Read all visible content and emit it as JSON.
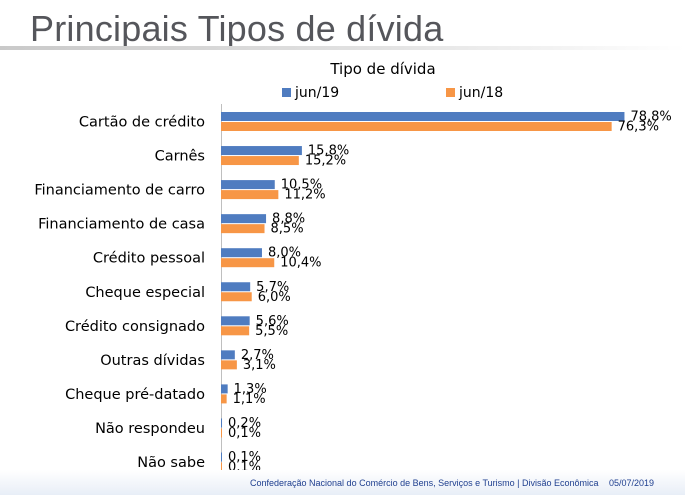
{
  "slide": {
    "title": "Principais Tipos de dívida",
    "footer_org": "Confederação Nacional do Comércio de Bens, Serviços e Turismo | Divisão Econômica",
    "footer_date": "05/07/2019"
  },
  "chart_data": {
    "type": "bar",
    "orientation": "horizontal",
    "title": "Tipo de dívida",
    "legend_position": "top",
    "grid": false,
    "xlim": [
      0,
      80
    ],
    "categories": [
      "Cartão de crédito",
      "Carnês",
      "Financiamento de carro",
      "Financiamento de casa",
      "Crédito pessoal",
      "Cheque especial",
      "Crédito consignado",
      "Outras dívidas",
      "Cheque pré-datado",
      "Não respondeu",
      "Não sabe"
    ],
    "series": [
      {
        "name": "jun/19",
        "color": "#4f7cc0",
        "values": [
          78.8,
          15.8,
          10.5,
          8.8,
          8.0,
          5.7,
          5.6,
          2.7,
          1.3,
          0.2,
          0.1
        ],
        "labels": [
          "78,8%",
          "15,8%",
          "10,5%",
          "8,8%",
          "8,0%",
          "5,7%",
          "5,6%",
          "2,7%",
          "1,3%",
          "0,2%",
          "0,1%"
        ]
      },
      {
        "name": "jun/18",
        "color": "#f79646",
        "values": [
          76.3,
          15.2,
          11.2,
          8.5,
          10.4,
          6.0,
          5.5,
          3.1,
          1.1,
          0.1,
          0.1
        ],
        "labels": [
          "76,3%",
          "15,2%",
          "11,2%",
          "8,5%",
          "10,4%",
          "6,0%",
          "5,5%",
          "3,1%",
          "1,1%",
          "0,1%",
          "0,1%"
        ]
      }
    ]
  }
}
